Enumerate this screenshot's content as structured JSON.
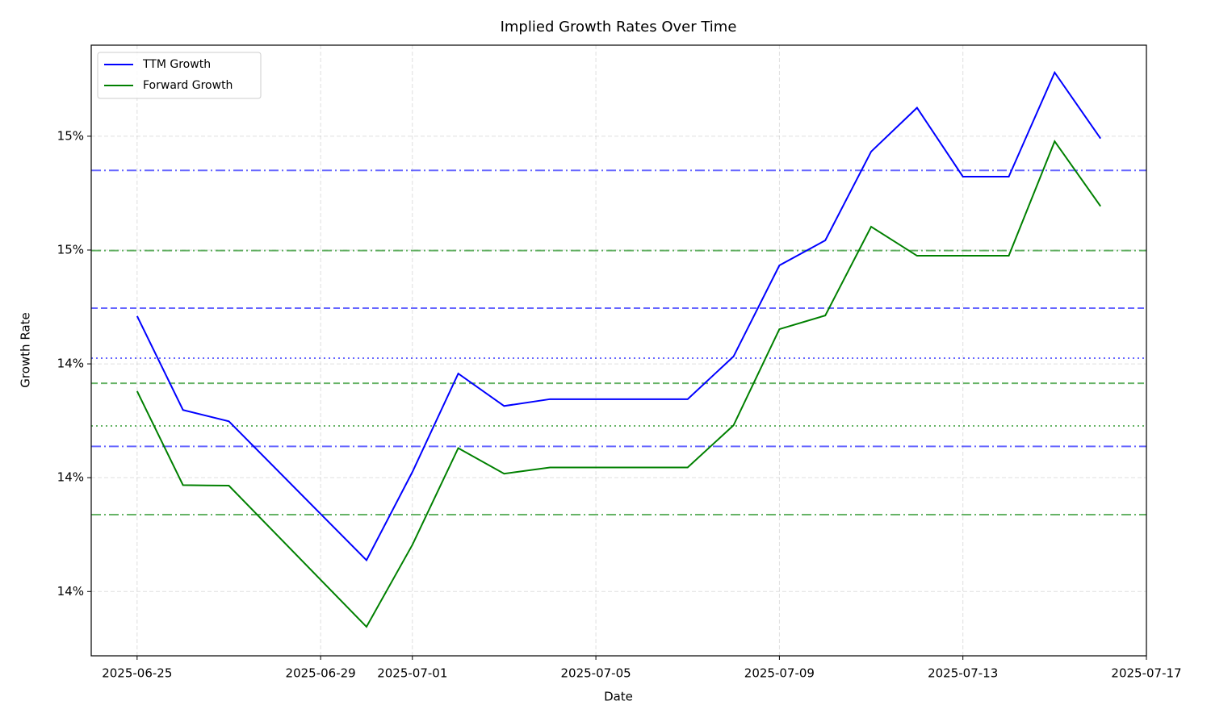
{
  "chart_data": {
    "type": "line",
    "title": "Implied Growth Rates Over Time",
    "x_label": "Date",
    "y_label": "Growth Rate",
    "x": [
      "2025-06-25",
      "2025-06-26",
      "2025-06-27",
      "2025-06-30",
      "2025-07-01",
      "2025-07-02",
      "2025-07-03",
      "2025-07-04",
      "2025-07-07",
      "2025-07-08",
      "2025-07-09",
      "2025-07-10",
      "2025-07-11",
      "2025-07-12",
      "2025-07-13",
      "2025-07-14",
      "2025-07-15",
      "2025-07-16"
    ],
    "series": [
      {
        "name": "TTM Growth",
        "color": "#0000ff",
        "values": [
          14.484,
          14.319,
          14.299,
          14.055,
          14.21,
          14.383,
          14.326,
          14.338,
          14.338,
          14.413,
          14.573,
          14.617,
          14.773,
          14.85,
          14.729,
          14.729,
          14.912,
          14.796
        ]
      },
      {
        "name": "Forward Growth",
        "color": "#008000",
        "values": [
          14.352,
          14.187,
          14.186,
          13.938,
          14.082,
          14.252,
          14.207,
          14.218,
          14.218,
          14.292,
          14.461,
          14.485,
          14.641,
          14.59,
          14.59,
          14.59,
          14.791,
          14.677
        ]
      }
    ],
    "reference_lines": [
      {
        "value": 14.74,
        "color": "#0000ff",
        "style": "dashdot"
      },
      {
        "value": 14.498,
        "color": "#0000ff",
        "style": "dashed"
      },
      {
        "value": 14.41,
        "color": "#0000ff",
        "style": "dotted"
      },
      {
        "value": 14.255,
        "color": "#0000ff",
        "style": "dashdot"
      },
      {
        "value": 14.599,
        "color": "#008000",
        "style": "dashdot"
      },
      {
        "value": 14.366,
        "color": "#008000",
        "style": "dashed"
      },
      {
        "value": 14.291,
        "color": "#008000",
        "style": "dotted"
      },
      {
        "value": 14.135,
        "color": "#008000",
        "style": "dashdot"
      }
    ],
    "xlim": [
      "2025-06-24",
      "2025-07-17"
    ],
    "xticks": [
      "2025-06-25",
      "2025-06-29",
      "2025-07-01",
      "2025-07-05",
      "2025-07-09",
      "2025-07-13",
      "2025-07-17"
    ],
    "ylim": [
      13.887,
      14.96
    ],
    "yticks": [
      {
        "value": 14.0,
        "label": "14%"
      },
      {
        "value": 14.2,
        "label": "14%"
      },
      {
        "value": 14.4,
        "label": "14%"
      },
      {
        "value": 14.6,
        "label": "15%"
      },
      {
        "value": 14.8,
        "label": "15%"
      }
    ],
    "grid": true,
    "legend": "upper left"
  }
}
